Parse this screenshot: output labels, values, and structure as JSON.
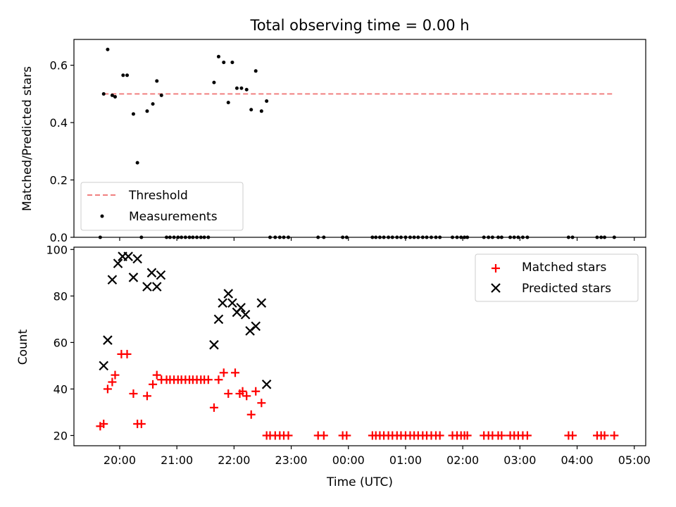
{
  "chart_data": {
    "type": "scatter",
    "title": "Total observing time = 0.00 h",
    "xlabel": "Time (UTC)",
    "x_ticks": [
      "20:00",
      "21:00",
      "22:00",
      "23:00",
      "00:00",
      "01:00",
      "02:00",
      "03:00",
      "04:00",
      "05:00"
    ],
    "x_range_hours": [
      19.2,
      29.2
    ],
    "panels": [
      {
        "ylabel": "Matched/Predicted stars",
        "ylim": [
          0,
          0.69
        ],
        "y_ticks": [
          "0.0",
          "0.2",
          "0.4",
          "0.6"
        ],
        "y_tick_values": [
          0,
          0.2,
          0.4,
          0.6
        ],
        "legend_position": "lower-left",
        "series": [
          {
            "name": "Threshold",
            "kind": "dashed-line",
            "color": "#f08080",
            "x": [
              19.72,
              28.65
            ],
            "y": [
              0.5,
              0.5
            ]
          },
          {
            "name": "Measurements",
            "kind": "dot",
            "color": "#000000",
            "x": [
              19.66,
              19.72,
              19.79,
              19.87,
              19.92,
              20.06,
              20.13,
              20.24,
              20.31,
              20.38,
              20.48,
              20.58,
              20.65,
              20.73,
              20.82,
              20.88,
              20.95,
              21.02,
              21.08,
              21.15,
              21.22,
              21.28,
              21.35,
              21.42,
              21.48,
              21.55,
              21.65,
              21.73,
              21.82,
              21.9,
              21.97,
              22.05,
              22.13,
              22.22,
              22.3,
              22.38,
              22.48,
              22.57,
              22.63,
              22.72,
              22.8,
              22.87,
              22.95,
              23.47,
              23.57,
              23.9,
              23.97,
              24.42,
              24.48,
              24.55,
              24.62,
              24.7,
              24.77,
              24.85,
              24.92,
              25.0,
              25.08,
              25.15,
              25.22,
              25.3,
              25.37,
              25.45,
              25.53,
              25.6,
              25.82,
              25.9,
              25.97,
              26.03,
              26.08,
              26.37,
              26.45,
              26.52,
              26.62,
              26.68,
              26.83,
              26.9,
              26.97,
              27.05,
              27.13,
              27.85,
              27.92,
              28.35,
              28.42,
              28.48,
              28.65
            ],
            "y": [
              0.0,
              0.5,
              0.655,
              0.495,
              0.49,
              0.565,
              0.565,
              0.43,
              0.26,
              0.0,
              0.44,
              0.465,
              0.545,
              0.495,
              0.0,
              0.0,
              0.0,
              0.0,
              0.0,
              0.0,
              0.0,
              0.0,
              0.0,
              0.0,
              0.0,
              0.0,
              0.54,
              0.63,
              0.61,
              0.47,
              0.61,
              0.52,
              0.52,
              0.515,
              0.445,
              0.58,
              0.44,
              0.475,
              0.0,
              0.0,
              0.0,
              0.0,
              0.0,
              0.0,
              0.0,
              0.0,
              0.0,
              0.0,
              0.0,
              0.0,
              0.0,
              0.0,
              0.0,
              0.0,
              0.0,
              0.0,
              0.0,
              0.0,
              0.0,
              0.0,
              0.0,
              0.0,
              0.0,
              0.0,
              0.0,
              0.0,
              0.0,
              0.0,
              0.0,
              0.0,
              0.0,
              0.0,
              0.0,
              0.0,
              0.0,
              0.0,
              0.0,
              0.0,
              0.0,
              0.0,
              0.0,
              0.0,
              0.0,
              0.0,
              0.0
            ]
          }
        ]
      },
      {
        "ylabel": "Count",
        "ylim": [
          15.6,
          101
        ],
        "y_ticks": [
          "20",
          "40",
          "60",
          "80",
          "100"
        ],
        "y_tick_values": [
          20,
          40,
          60,
          80,
          100
        ],
        "legend_position": "upper-right",
        "series": [
          {
            "name": "Matched stars",
            "kind": "plus",
            "color": "#ff0000",
            "x": [
              19.66,
              19.72,
              19.79,
              19.87,
              19.92,
              20.03,
              20.13,
              20.24,
              20.31,
              20.38,
              20.48,
              20.58,
              20.65,
              20.73,
              20.82,
              20.88,
              20.95,
              21.02,
              21.08,
              21.15,
              21.22,
              21.28,
              21.35,
              21.42,
              21.48,
              21.55,
              21.65,
              21.73,
              21.82,
              21.9,
              22.02,
              22.1,
              22.15,
              22.22,
              22.3,
              22.38,
              22.48,
              22.57,
              22.63,
              22.72,
              22.8,
              22.87,
              22.95,
              23.47,
              23.57,
              23.9,
              23.97,
              24.42,
              24.48,
              24.55,
              24.62,
              24.7,
              24.77,
              24.85,
              24.92,
              25.0,
              25.08,
              25.15,
              25.22,
              25.3,
              25.37,
              25.45,
              25.53,
              25.6,
              25.82,
              25.9,
              25.97,
              26.03,
              26.08,
              26.37,
              26.45,
              26.52,
              26.62,
              26.68,
              26.83,
              26.9,
              26.97,
              27.05,
              27.13,
              27.85,
              27.92,
              28.35,
              28.42,
              28.48,
              28.65
            ],
            "y": [
              24,
              25,
              40,
              43,
              46,
              55,
              55,
              38,
              25,
              25,
              37,
              42,
              46,
              44,
              44,
              44,
              44,
              44,
              44,
              44,
              44,
              44,
              44,
              44,
              44,
              44,
              32,
              44,
              47,
              38,
              47,
              38,
              39,
              37,
              29,
              39,
              34,
              20,
              20,
              20,
              20,
              20,
              20,
              20,
              20,
              20,
              20,
              20,
              20,
              20,
              20,
              20,
              20,
              20,
              20,
              20,
              20,
              20,
              20,
              20,
              20,
              20,
              20,
              20,
              20,
              20,
              20,
              20,
              20,
              20,
              20,
              20,
              20,
              20,
              20,
              20,
              20,
              20,
              20,
              20,
              20,
              20,
              20,
              20,
              20
            ]
          },
          {
            "name": "Predicted stars",
            "kind": "x",
            "color": "#000000",
            "x": [
              19.72,
              19.79,
              19.87,
              19.97,
              20.05,
              20.15,
              20.24,
              20.31,
              20.48,
              20.56,
              20.65,
              20.72,
              21.65,
              21.73,
              21.8,
              21.9,
              21.97,
              22.05,
              22.12,
              22.2,
              22.28,
              22.38,
              22.48,
              22.57
            ],
            "y": [
              50,
              61,
              87,
              94,
              97,
              97,
              88,
              96,
              84,
              90,
              84,
              89,
              59,
              70,
              77,
              81,
              77,
              73,
              75,
              72,
              65,
              67,
              77,
              42
            ]
          }
        ]
      }
    ]
  }
}
